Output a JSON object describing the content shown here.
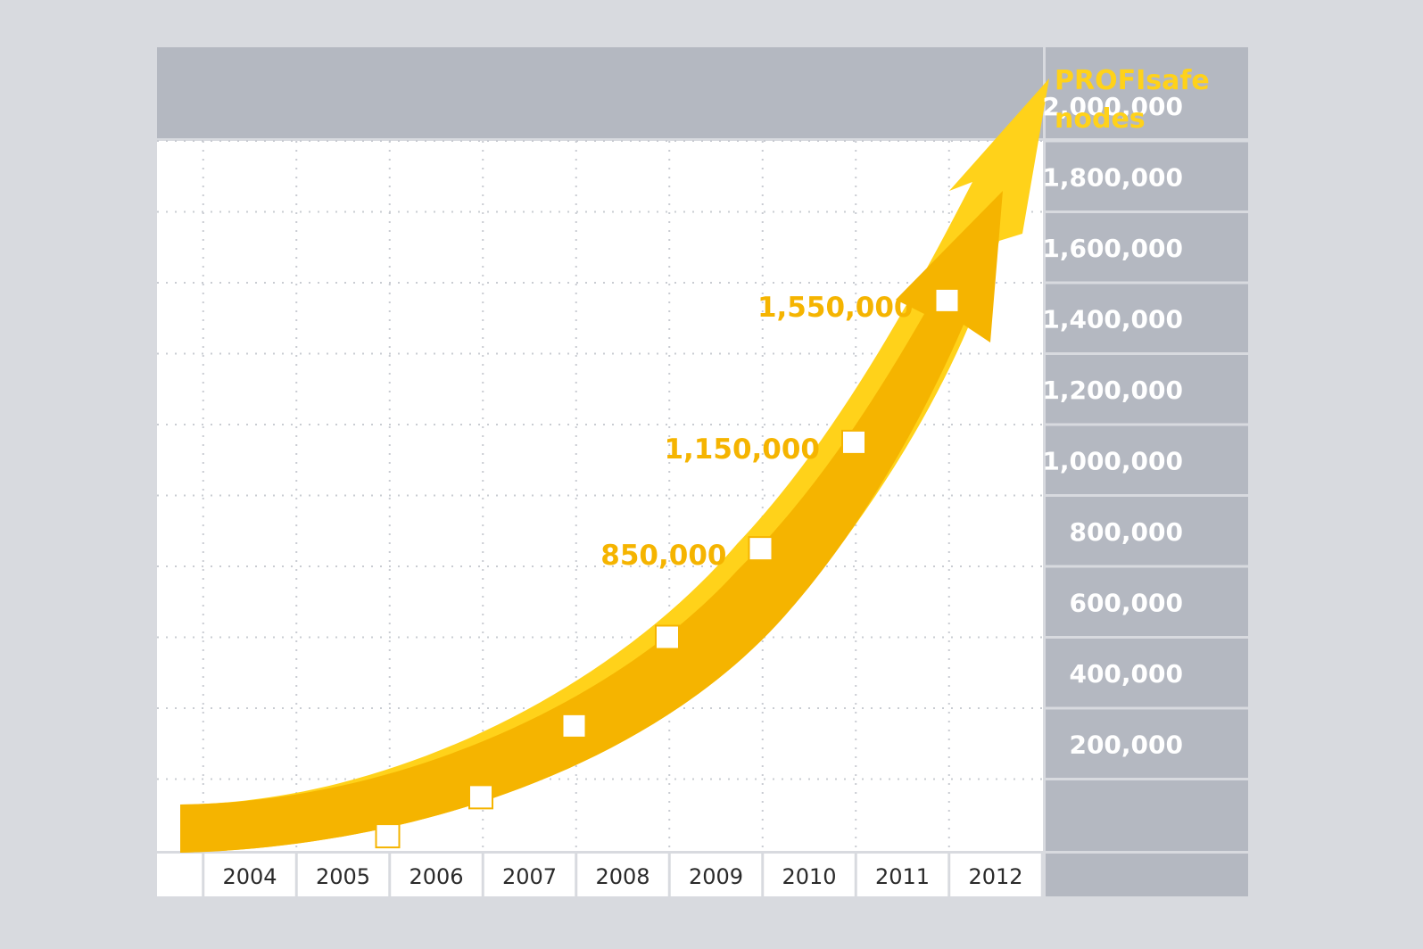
{
  "chart_data": {
    "type": "line",
    "title": "",
    "ylabel_lines": [
      "PROFIsafe",
      "nodes"
    ],
    "xlabel": "",
    "x": [
      "2004",
      "2005",
      "2006",
      "2007",
      "2008",
      "2009",
      "2010",
      "2011",
      "2012"
    ],
    "series": [
      {
        "values": [
          null,
          40000,
          150000,
          350000,
          600000,
          850000,
          1150000,
          1550000,
          null
        ]
      }
    ],
    "ylim": [
      0,
      2000000
    ],
    "yticks": [
      "200,000",
      "400,000",
      "600,000",
      "800,000",
      "1,000,000",
      "1,200,000",
      "1,400,000",
      "1,600,000",
      "1,800,000",
      "2,000,000"
    ],
    "ytick_values": [
      200000,
      400000,
      600000,
      800000,
      1000000,
      1200000,
      1400000,
      1600000,
      1800000,
      2000000
    ],
    "annotations": [
      {
        "x": "2009",
        "y": 850000,
        "text": "850,000"
      },
      {
        "x": "2010",
        "y": 1150000,
        "text": "1,150,000"
      },
      {
        "x": "2011",
        "y": 1550000,
        "text": "1,550,000"
      }
    ],
    "grid": true,
    "y_axis_side": "right",
    "colors": {
      "arrow": "#f5b400",
      "arrow_highlight": "#ffd21a",
      "axis_panel": "#b4b8c1",
      "annotation": "#f5b400",
      "ylabel": "#ffd21a",
      "marker": "#ffffff"
    }
  }
}
